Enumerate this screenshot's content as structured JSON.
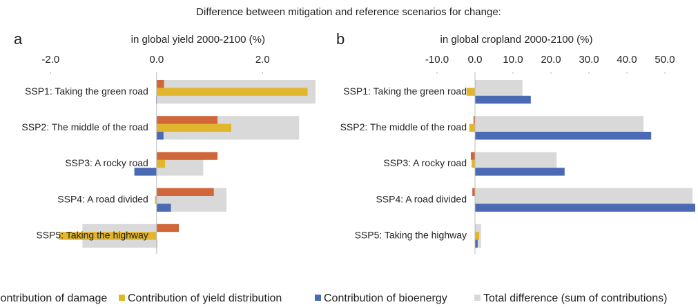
{
  "title": "Difference between mitigation and reference scenarios for change:",
  "chart_data": [
    {
      "type": "bar",
      "orientation": "horizontal",
      "panel_label": "a",
      "title": "in global yield 2000-2100 (%)",
      "categories": [
        "SSP1: Taking the green road",
        "SSP2: The middle of the road",
        "SSP3: A rocky road",
        "SSP4: A road divided",
        "SSP5: Taking the highway"
      ],
      "xlim": [
        -2.5,
        3.0
      ],
      "xticks": [
        {
          "value": -2,
          "label": "-2.0"
        },
        {
          "value": 0,
          "label": "0.0"
        },
        {
          "value": 2,
          "label": "2.0"
        }
      ],
      "series": [
        {
          "name": "Contribution of damage",
          "color": "#d0663a",
          "values": [
            0.14,
            1.15,
            1.15,
            1.08,
            0.42
          ]
        },
        {
          "name": "Contribution of yield distribution",
          "color": "#e1b52c",
          "values": [
            2.85,
            1.41,
            0.16,
            -0.03,
            -1.84
          ]
        },
        {
          "name": "Contribution of bioenergy",
          "color": "#4a6ab3",
          "values": [
            -0.01,
            0.13,
            -0.42,
            0.27,
            0.01
          ]
        },
        {
          "name": "Total difference (sum of contributions)",
          "color": "#d9d9d9",
          "values": [
            3.0,
            2.69,
            0.88,
            1.32,
            -1.4
          ]
        }
      ]
    },
    {
      "type": "bar",
      "orientation": "horizontal",
      "panel_label": "b",
      "title": "in global cropland 2000-2100 (%)",
      "categories": [
        "SSP1: Taking the green road",
        "SSP2: The middle of the road",
        "SSP3: A rocky road",
        "SSP4: A road divided",
        "SSP5: Taking the highway"
      ],
      "xlim": [
        -12,
        58
      ],
      "xticks": [
        {
          "value": -10,
          "label": "-10.0"
        },
        {
          "value": 0,
          "label": "0.0"
        },
        {
          "value": 10,
          "label": "10.0"
        },
        {
          "value": 20,
          "label": "20.0"
        },
        {
          "value": 30,
          "label": "30.0"
        },
        {
          "value": 40,
          "label": "40.0"
        },
        {
          "value": 50,
          "label": "50.0"
        }
      ],
      "series": [
        {
          "name": "Contribution of damage",
          "color": "#d0663a",
          "values": [
            0.1,
            -0.4,
            -1.1,
            -0.7,
            0.1
          ]
        },
        {
          "name": "Contribution of yield distribution",
          "color": "#e1b52c",
          "values": [
            -2.2,
            -1.5,
            -0.9,
            0.1,
            1.1
          ]
        },
        {
          "name": "Contribution of bioenergy",
          "color": "#4a6ab3",
          "values": [
            14.7,
            46.4,
            23.6,
            58,
            0.7
          ]
        },
        {
          "name": "Total difference (sum of contributions)",
          "color": "#d9d9d9",
          "values": [
            12.5,
            44.4,
            21.5,
            57.3,
            1.6
          ]
        }
      ]
    }
  ]
}
